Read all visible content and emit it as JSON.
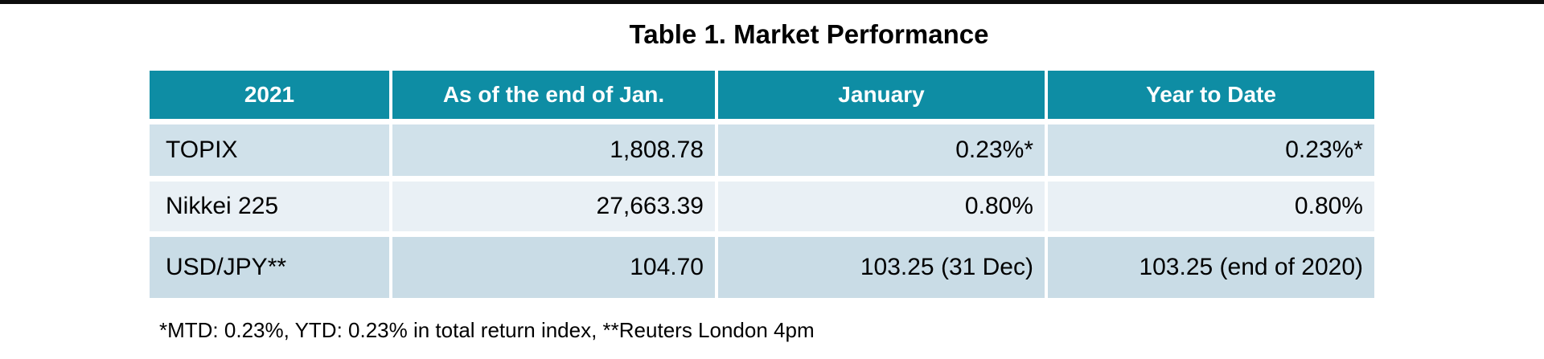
{
  "table": {
    "title": "Table 1. Market Performance",
    "columns": [
      "2021",
      "As of the end of Jan.",
      "January",
      "Year to Date"
    ],
    "rows": [
      {
        "label": "TOPIX",
        "values": [
          "1,808.78",
          "0.23%*",
          "0.23%*"
        ]
      },
      {
        "label": "Nikkei 225",
        "values": [
          "27,663.39",
          "0.80%",
          "0.80%"
        ]
      },
      {
        "label": "USD/JPY**",
        "values": [
          "104.70",
          "103.25 (31 Dec)",
          "103.25 (end of 2020)"
        ]
      }
    ],
    "footnote": "*MTD: 0.23%, YTD: 0.23% in total return index, **Reuters London 4pm"
  },
  "colors": {
    "header_bg": "#0E8DA4",
    "header_text": "#ffffff",
    "row_odd_bg": "#d0e1ea",
    "row_even_bg": "#e9f0f5",
    "row_last_bg": "#c9dce6",
    "body_text": "#000000",
    "top_bar": "#0d0d0d"
  }
}
